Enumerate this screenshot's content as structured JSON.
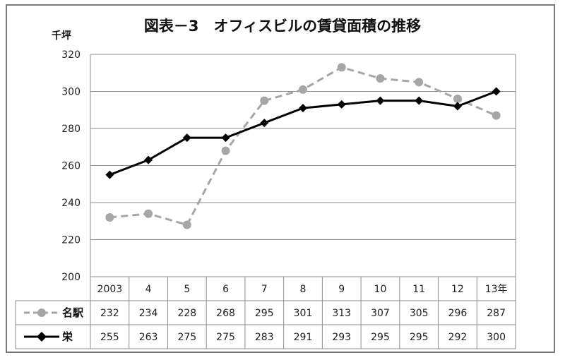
{
  "chart_data": {
    "type": "line",
    "title": "図表－3　オフィスビルの賃貸面積の推移",
    "ylabel": "千坪",
    "ylim": [
      200,
      320
    ],
    "yticks": [
      200,
      220,
      240,
      260,
      280,
      300,
      320
    ],
    "grid": true,
    "categories": [
      "2003",
      "4",
      "5",
      "6",
      "7",
      "8",
      "9",
      "10",
      "11",
      "12",
      "13年"
    ],
    "series": [
      {
        "name": "名駅",
        "values": [
          232,
          234,
          228,
          268,
          295,
          301,
          313,
          307,
          305,
          296,
          287
        ],
        "color": "#a6a6a6",
        "line_style": "dashed",
        "marker": "circle"
      },
      {
        "name": "栄",
        "values": [
          255,
          263,
          275,
          275,
          283,
          291,
          293,
          295,
          295,
          292,
          300
        ],
        "color": "#000000",
        "line_style": "solid",
        "marker": "diamond"
      }
    ],
    "legend_placement": "data-table"
  }
}
